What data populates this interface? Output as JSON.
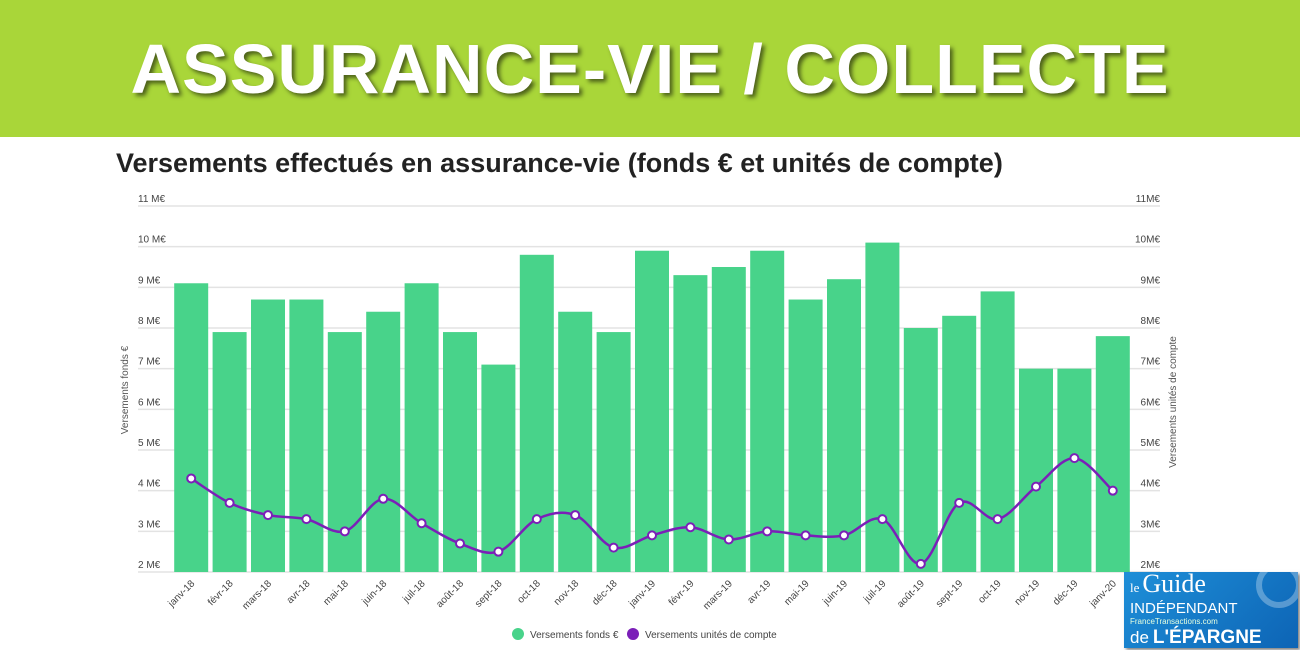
{
  "banner": {
    "title": "ASSURANCE-VIE / COLLECTE"
  },
  "logo": {
    "le": "le",
    "guide": "Guide",
    "independant": "INDÉPENDANT",
    "france_transactions": "FranceTransactions.com",
    "de": "de",
    "epargne": "L'ÉPARGNE"
  },
  "chart_data": {
    "type": "bar+line",
    "title": "Versements effectués en assurance-vie (fonds € et unités de compte)",
    "ylabel": "Versements fonds €",
    "y2label": "Versements unités de compte",
    "ylim": [
      2,
      11
    ],
    "y2lim": [
      2,
      11
    ],
    "yticks": [
      "2 M€",
      "3 M€",
      "4 M€",
      "5 M€",
      "6 M€",
      "7 M€",
      "8 M€",
      "9 M€",
      "10 M€",
      "11 M€"
    ],
    "y2ticks": [
      "2M€",
      "3M€",
      "4M€",
      "5M€",
      "6M€",
      "7M€",
      "8M€",
      "9M€",
      "10M€",
      "11M€"
    ],
    "grid": true,
    "legend_position": "bottom",
    "categories": [
      "janv-18",
      "févr-18",
      "mars-18",
      "avr-18",
      "mai-18",
      "juin-18",
      "juil-18",
      "août-18",
      "sept-18",
      "oct-18",
      "nov-18",
      "déc-18",
      "janv-19",
      "févr-19",
      "mars-19",
      "avr-19",
      "mai-19",
      "juin-19",
      "juil-19",
      "août-19",
      "sept-19",
      "oct-19",
      "nov-19",
      "déc-19",
      "janv-20"
    ],
    "series": [
      {
        "name": "Versements fonds €",
        "type": "bar",
        "color": "#48d38a",
        "values": [
          9.1,
          7.9,
          8.7,
          8.7,
          7.9,
          8.4,
          9.1,
          7.9,
          7.1,
          9.8,
          8.4,
          7.9,
          9.9,
          9.3,
          9.5,
          9.9,
          8.7,
          9.2,
          10.1,
          8.0,
          8.3,
          8.9,
          7.0,
          7.0,
          7.8
        ]
      },
      {
        "name": "Versements unités de compte",
        "type": "line",
        "color": "#7b1fb8",
        "values": [
          4.3,
          3.7,
          3.4,
          3.3,
          3.0,
          3.8,
          3.2,
          2.7,
          2.5,
          3.3,
          3.4,
          2.6,
          2.9,
          3.1,
          2.8,
          3.0,
          2.9,
          2.9,
          3.3,
          2.2,
          3.7,
          3.3,
          4.1,
          4.8,
          4.0
        ]
      }
    ]
  }
}
